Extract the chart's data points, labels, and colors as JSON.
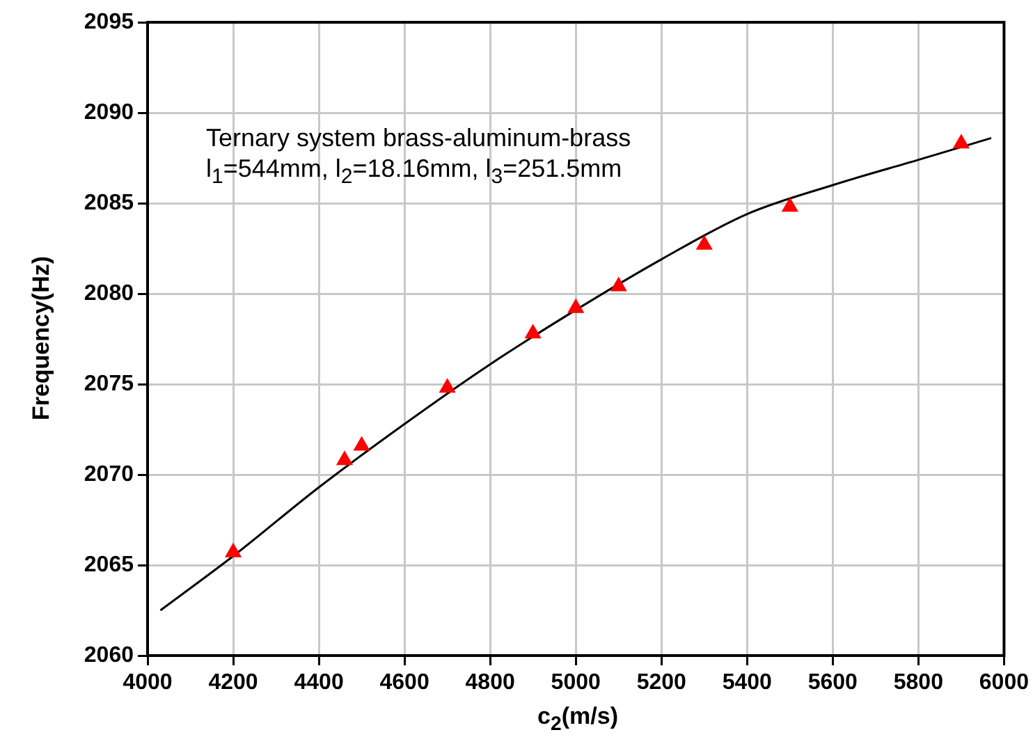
{
  "chart_data": {
    "type": "scatter",
    "xlabel": "c$_{2}$(m/s)",
    "ylabel": "Frequency(Hz)",
    "annotations": [
      "Ternary system brass-aluminum-brass",
      "l$_{1}$=544mm, l$_{2}$=18.16mm, l$_{3}$=251.5mm"
    ],
    "xlim": [
      4000,
      6000
    ],
    "xticks": [
      4000,
      4200,
      4400,
      4600,
      4800,
      5000,
      5200,
      5400,
      5600,
      5800,
      6000
    ],
    "ylim": [
      2060,
      2095
    ],
    "yticks": [
      2060,
      2065,
      2070,
      2075,
      2080,
      2085,
      2090,
      2095
    ],
    "grid": true,
    "legend": false,
    "series": [
      {
        "type": "scatter",
        "color": "#ff0000",
        "marker": "triangle",
        "x": [
          4200,
          4460,
          4500,
          4700,
          4900,
          5000,
          5100,
          5300,
          5500,
          5900
        ],
        "values": [
          2065.7,
          2070.8,
          2071.6,
          2074.8,
          2077.8,
          2079.2,
          2080.4,
          2082.7,
          2084.8,
          2088.3
        ]
      },
      {
        "type": "line",
        "color": "#000000",
        "marker": "none",
        "line_style": "solid",
        "x": [
          4030,
          4200,
          4400,
          4600,
          4800,
          5000,
          5200,
          5400,
          5600,
          5800,
          5970
        ],
        "values": [
          2062.5,
          2065.5,
          2069.3,
          2072.8,
          2076.1,
          2079.1,
          2081.9,
          2084.4,
          2086.0,
          2087.4,
          2088.6
        ]
      }
    ]
  }
}
